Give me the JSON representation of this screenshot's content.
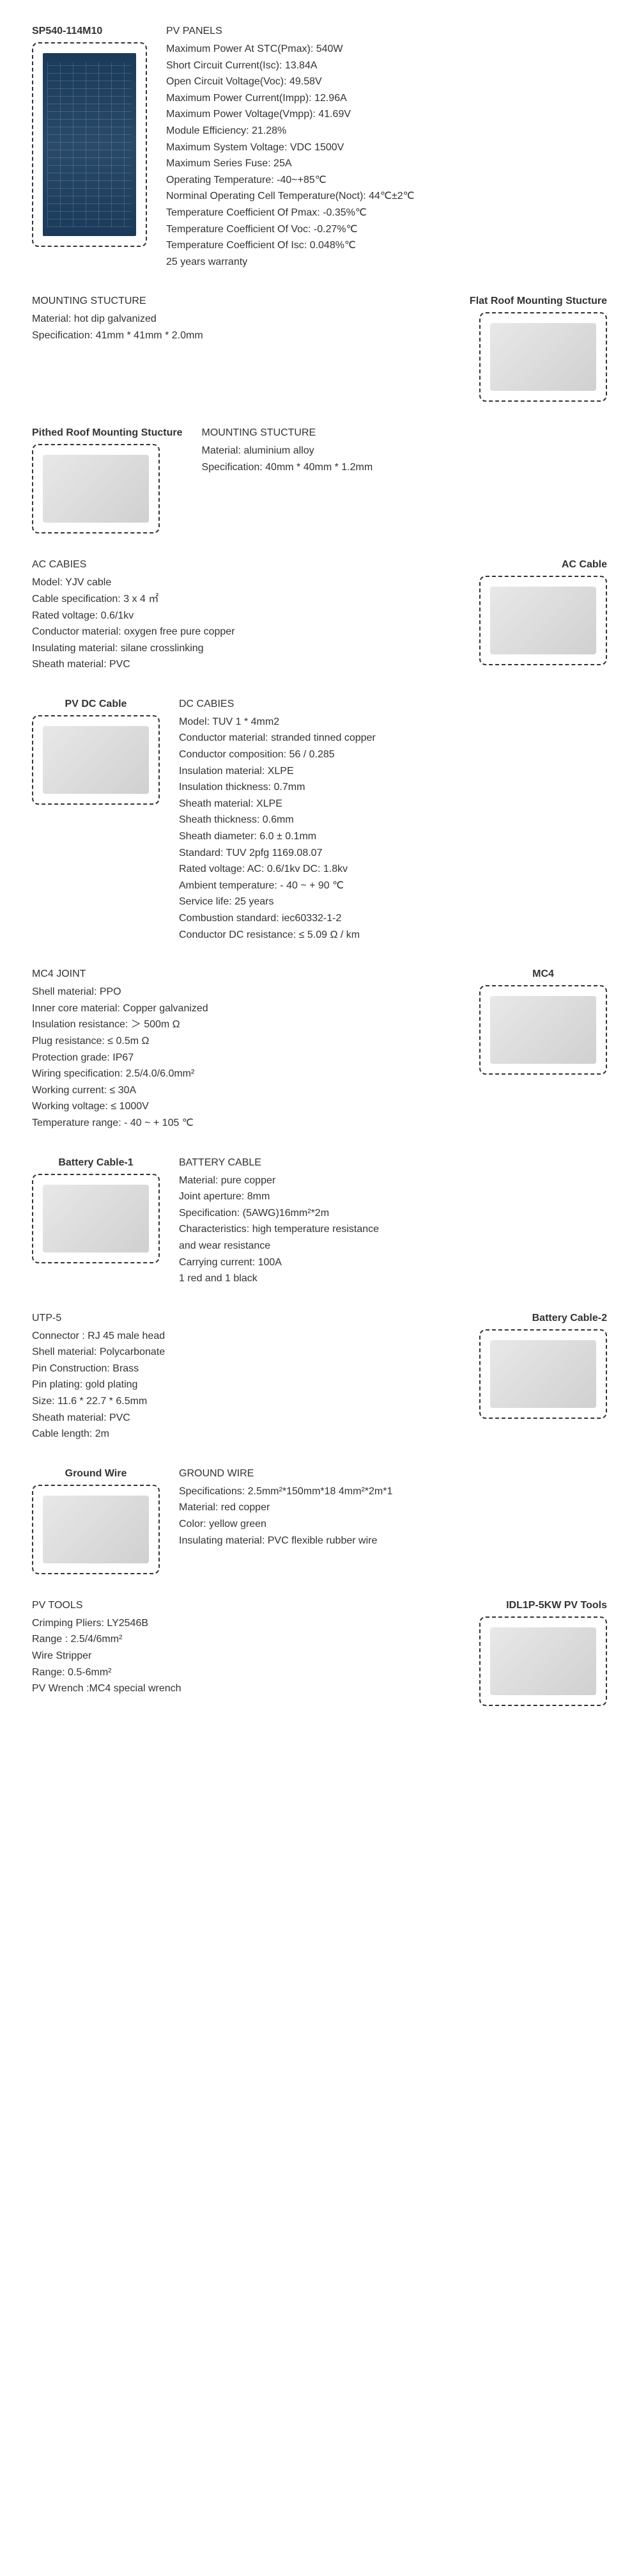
{
  "products": [
    {
      "layout": "image-left",
      "labelPos": "top-left",
      "imageLabel": "SP540-114M10",
      "imageClass": "tall",
      "imageType": "solar",
      "title": "PV PANELS",
      "lines": [
        "Maximum Power At STC(Pmax): 540W",
        "Short Circuit Current(Isc): 13.84A",
        "Open Circuit Voltage(Voc): 49.58V",
        "Maximum Power Current(Impp): 12.96A",
        "Maximum Power Voltage(Vmpp): 41.69V",
        "Module Efficiency: 21.28%",
        "Maximum System Voltage: VDC 1500V",
        "Maximum Series Fuse: 25A",
        "Operating Temperature: -40~+85℃",
        "Norminal Operating Cell Temperature(Noct): 44℃±2℃",
        "Temperature Coefficient Of Pmax: -0.35%℃",
        "Temperature Coefficient Of Voc: -0.27%℃",
        "Temperature Coefficient Of Isc: 0.048%℃",
        "25 years warranty"
      ]
    },
    {
      "layout": "image-right",
      "labelPos": "top-right",
      "imageLabel": "Flat Roof Mounting  Stucture",
      "imageClass": "wide",
      "title": "MOUNTING STUCTURE",
      "lines": [
        "Material: hot dip galvanized",
        "Specification: 41mm * 41mm * 2.0mm"
      ]
    },
    {
      "layout": "image-left",
      "labelPos": "top-left",
      "imageLabel": "Pithed Roof Mounting  Stucture",
      "imageClass": "wide",
      "title": "MOUNTING STUCTURE",
      "lines": [
        "Material: aluminium alloy",
        "Specification: 40mm * 40mm * 1.2mm"
      ]
    },
    {
      "layout": "image-right",
      "labelPos": "top-right",
      "imageLabel": "AC Cable",
      "imageClass": "wide",
      "title": "AC CABIES",
      "lines": [
        "Model: YJV cable",
        "Cable specification: 3 x 4 ㎡",
        "Rated voltage: 0.6/1kv",
        "Conductor material: oxygen free pure copper",
        "Insulating material: silane crosslinking",
        "Sheath material: PVC"
      ]
    },
    {
      "layout": "image-left",
      "labelPos": "top-center",
      "imageLabel": "PV DC Cable",
      "imageClass": "wide",
      "title": "DC CABIES",
      "lines": [
        "Model: TUV  1 * 4mm2",
        "Conductor material: stranded tinned copper",
        "Conductor composition: 56 / 0.285",
        "Insulation material: XLPE",
        "Insulation thickness: 0.7mm",
        "Sheath material: XLPE",
        "Sheath thickness: 0.6mm",
        "Sheath diameter: 6.0 ± 0.1mm",
        "Standard: TUV 2pfg 1169.08.07",
        "Rated voltage: AC: 0.6/1kv DC: 1.8kv",
        "Ambient temperature: - 40 ~ + 90 ℃",
        "Service life: 25 years",
        "Combustion standard: iec60332-1-2",
        "Conductor DC resistance: ≤ 5.09 Ω / km"
      ]
    },
    {
      "layout": "image-right",
      "labelPos": "top-center",
      "imageLabel": "MC4",
      "imageClass": "wide",
      "title": "MC4 JOINT",
      "lines": [
        "Shell material: PPO",
        "Inner core material: Copper galvanized",
        "Insulation resistance: ＞ 500m Ω",
        "Plug resistance: ≤ 0.5m Ω",
        "Protection grade: IP67",
        "Wiring specification: 2.5/4.0/6.0mm²",
        "Working current: ≤ 30A",
        "Working voltage: ≤ 1000V",
        "Temperature range: - 40 ~ + 105 ℃"
      ]
    },
    {
      "layout": "image-left",
      "labelPos": "top-center",
      "imageLabel": "Battery Cable-1",
      "imageClass": "wide",
      "title": "BATTERY CABLE",
      "lines": [
        "Material: pure copper",
        "Joint aperture: 8mm",
        "Specification: (5AWG)16mm²*2m",
        "Characteristics: high temperature resistance",
        " and wear resistance",
        "Carrying current: 100A",
        "1 red and 1 black"
      ]
    },
    {
      "layout": "image-right",
      "labelPos": "top-right",
      "imageLabel": "Battery Cable-2",
      "imageClass": "wide",
      "title": "UTP-5",
      "lines": [
        "Connector : RJ 45 male head",
        "Shell material: Polycarbonate",
        "Pin Construction: Brass",
        "Pin plating: gold plating",
        "Size: 11.6 * 22.7 * 6.5mm",
        "Sheath material: PVC",
        "Cable length: 2m"
      ]
    },
    {
      "layout": "image-left",
      "labelPos": "top-center",
      "imageLabel": "Ground Wire",
      "imageClass": "wide",
      "title": "GROUND WIRE",
      "lines": [
        "Specifications: 2.5mm²*150mm*18  4mm²*2m*1",
        "Material: red copper",
        "Color: yellow green",
        "Insulating material: PVC flexible rubber wire"
      ]
    },
    {
      "layout": "image-right",
      "labelPos": "top-right",
      "imageLabel": "IDL1P-5KW PV Tools",
      "imageClass": "wide",
      "title": "PV TOOLS",
      "lines": [
        "Crimping Pliers: LY2546B",
        "Range : 2.5/4/6mm²",
        "Wire Stripper",
        "Range: 0.5-6mm²",
        "PV Wrench :MC4 special wrench"
      ]
    }
  ]
}
